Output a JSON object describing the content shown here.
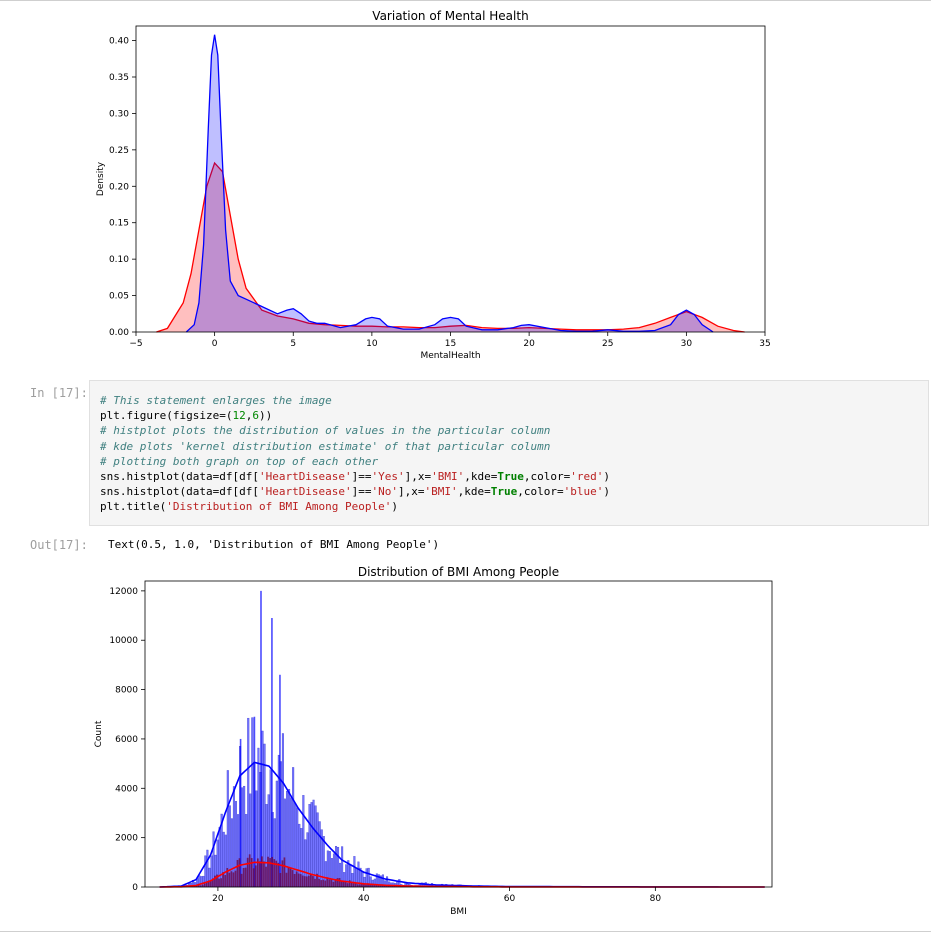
{
  "notebook": {
    "input_prompt": "In [17]:",
    "output_prompt": "Out[17]:",
    "output_text": "Text(0.5, 1.0, 'Distribution of BMI Among People')",
    "code_lines": [
      [
        {
          "t": "# This statement enlarges the image",
          "c": "cm"
        }
      ],
      [
        {
          "t": "plt.figure(figsize=(",
          "c": ""
        },
        {
          "t": "12",
          "c": "nm"
        },
        {
          "t": ",",
          "c": ""
        },
        {
          "t": "6",
          "c": "nm"
        },
        {
          "t": "))",
          "c": ""
        }
      ],
      [
        {
          "t": "# histplot plots the distribution of values in the particular column",
          "c": "cm"
        }
      ],
      [
        {
          "t": "# kde plots 'kernel distribution estimate' of that particular column",
          "c": "cm"
        }
      ],
      [
        {
          "t": "# plotting both graph on top of each other",
          "c": "cm"
        }
      ],
      [
        {
          "t": "sns.histplot(data=df[df[",
          "c": ""
        },
        {
          "t": "'HeartDisease'",
          "c": "st"
        },
        {
          "t": "]==",
          "c": ""
        },
        {
          "t": "'Yes'",
          "c": "st"
        },
        {
          "t": "],x=",
          "c": ""
        },
        {
          "t": "'BMI'",
          "c": "st"
        },
        {
          "t": ",kde=",
          "c": ""
        },
        {
          "t": "True",
          "c": "kw"
        },
        {
          "t": ",color=",
          "c": ""
        },
        {
          "t": "'red'",
          "c": "st"
        },
        {
          "t": ")",
          "c": ""
        }
      ],
      [
        {
          "t": "sns.histplot(data=df[df[",
          "c": ""
        },
        {
          "t": "'HeartDisease'",
          "c": "st"
        },
        {
          "t": "]==",
          "c": ""
        },
        {
          "t": "'No'",
          "c": "st"
        },
        {
          "t": "],x=",
          "c": ""
        },
        {
          "t": "'BMI'",
          "c": "st"
        },
        {
          "t": ",kde=",
          "c": ""
        },
        {
          "t": "True",
          "c": "kw"
        },
        {
          "t": ",color=",
          "c": ""
        },
        {
          "t": "'blue'",
          "c": "st"
        },
        {
          "t": ")",
          "c": ""
        }
      ],
      [
        {
          "t": "plt.title(",
          "c": ""
        },
        {
          "t": "'Distribution of BMI Among People'",
          "c": "st"
        },
        {
          "t": ")",
          "c": ""
        }
      ]
    ]
  },
  "chart_data": [
    {
      "type": "area",
      "title": "Variation of Mental Health",
      "xlabel": "MentalHealth",
      "ylabel": "Density",
      "xlim": [
        -5,
        35
      ],
      "ylim": [
        0,
        0.42
      ],
      "xticks": [
        -5,
        0,
        5,
        10,
        15,
        20,
        25,
        30,
        35
      ],
      "yticks": [
        0.0,
        0.05,
        0.1,
        0.15,
        0.2,
        0.25,
        0.3,
        0.35,
        0.4
      ],
      "ytick_labels": [
        "0.00",
        "0.05",
        "0.10",
        "0.15",
        "0.20",
        "0.25",
        "0.30",
        "0.35",
        "0.40"
      ],
      "grid": false,
      "series": [
        {
          "color": "#ff0000",
          "fill": "rgba(255,0,0,0.25)",
          "x": [
            -3.7,
            -3,
            -2,
            -1.5,
            -1,
            -0.5,
            0,
            0.5,
            1,
            1.5,
            2,
            3,
            4,
            5,
            6,
            7,
            8,
            9,
            10,
            11,
            12,
            13,
            14,
            15,
            16,
            17,
            18,
            19,
            20,
            21,
            22,
            23,
            24,
            25,
            26,
            27,
            28,
            29,
            30,
            31,
            32,
            33,
            33.7
          ],
          "y": [
            0,
            0.005,
            0.04,
            0.08,
            0.14,
            0.2,
            0.232,
            0.22,
            0.16,
            0.1,
            0.06,
            0.03,
            0.022,
            0.018,
            0.012,
            0.01,
            0.009,
            0.008,
            0.008,
            0.007,
            0.007,
            0.006,
            0.006,
            0.008,
            0.009,
            0.006,
            0.005,
            0.005,
            0.006,
            0.005,
            0.004,
            0.003,
            0.003,
            0.003,
            0.004,
            0.006,
            0.012,
            0.02,
            0.028,
            0.02,
            0.008,
            0.002,
            0
          ]
        },
        {
          "color": "#0000ff",
          "fill": "rgba(0,0,255,0.25)",
          "x": [
            -1.8,
            -1.3,
            -1,
            -0.7,
            -0.4,
            -0.2,
            0,
            0.2,
            0.4,
            0.7,
            1,
            1.5,
            2,
            3,
            4,
            4.6,
            5,
            5.5,
            6,
            6.5,
            7,
            8,
            9,
            9.6,
            10,
            10.5,
            11,
            12,
            13,
            14,
            14.5,
            15,
            15.5,
            16,
            17,
            18,
            19,
            19.5,
            20,
            21,
            22,
            23,
            24,
            25,
            26,
            27,
            28,
            29,
            29.5,
            30,
            30.5,
            31,
            31.7
          ],
          "y": [
            0,
            0.01,
            0.04,
            0.12,
            0.28,
            0.38,
            0.408,
            0.38,
            0.28,
            0.14,
            0.07,
            0.05,
            0.045,
            0.035,
            0.025,
            0.03,
            0.032,
            0.025,
            0.015,
            0.012,
            0.012,
            0.006,
            0.01,
            0.018,
            0.02,
            0.018,
            0.008,
            0.004,
            0.004,
            0.01,
            0.018,
            0.02,
            0.018,
            0.008,
            0.003,
            0.003,
            0.006,
            0.009,
            0.01,
            0.006,
            0.002,
            0.001,
            0.001,
            0.003,
            0.001,
            0.001,
            0.002,
            0.01,
            0.024,
            0.03,
            0.024,
            0.01,
            0
          ]
        }
      ]
    },
    {
      "type": "bar",
      "title": "Distribution of BMI Among People",
      "xlabel": "BMI",
      "ylabel": "Count",
      "xlim": [
        10,
        96
      ],
      "ylim": [
        0,
        12400
      ],
      "xticks": [
        20,
        40,
        60,
        80
      ],
      "yticks": [
        0,
        2000,
        4000,
        6000,
        8000,
        10000,
        12000
      ],
      "grid": false,
      "series": [
        {
          "color": "#0000ff",
          "kde_x": [
            12,
            15,
            17,
            19,
            21,
            23,
            25,
            27,
            29,
            31,
            33,
            35,
            37,
            40,
            43,
            46,
            50,
            55,
            60,
            70,
            80,
            95
          ],
          "kde_y": [
            0,
            40,
            300,
            1300,
            3000,
            4500,
            5050,
            4900,
            4200,
            3200,
            2400,
            1700,
            1100,
            600,
            320,
            170,
            80,
            40,
            20,
            10,
            5,
            0
          ]
        },
        {
          "color": "#8b0000",
          "kde_x": [
            12,
            15,
            17,
            19,
            21,
            23,
            25,
            27,
            29,
            31,
            33,
            35,
            37,
            40,
            43,
            46,
            50,
            55,
            60,
            70,
            80,
            95
          ],
          "kde_y": [
            0,
            10,
            60,
            250,
            600,
            880,
            1000,
            980,
            860,
            680,
            500,
            360,
            240,
            130,
            70,
            40,
            20,
            10,
            5,
            2,
            1,
            0
          ]
        }
      ],
      "highlight_bars": [
        {
          "x": 25.8,
          "value": 12000
        },
        {
          "x": 27.3,
          "value": 10900
        },
        {
          "x": 24.9,
          "value": 6900
        },
        {
          "x": 28.4,
          "value": 8600
        },
        {
          "x": 23.0,
          "value": 6000
        }
      ]
    }
  ]
}
